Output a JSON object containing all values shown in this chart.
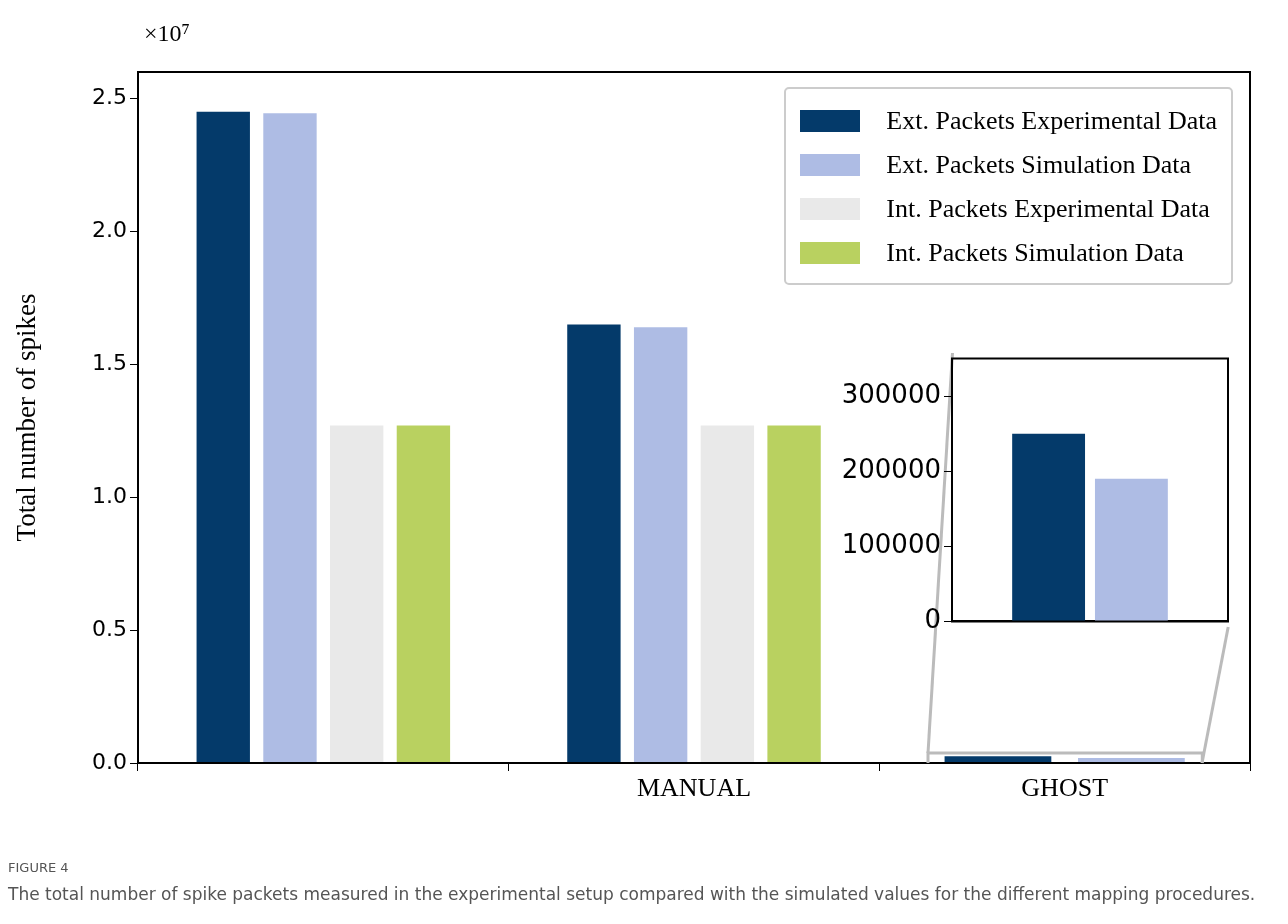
{
  "chart_data": [
    {
      "type": "bar",
      "ylabel": "Total number of spikes",
      "categories": [
        null,
        "MANUAL",
        "GHOST"
      ],
      "series": [
        {
          "name": "Ext. Packets Experimental Data",
          "color": "#043a6a",
          "values": [
            2.45,
            1.65,
            0.025
          ]
        },
        {
          "name": "Ext. Packets Simulation Data",
          "color": "#aebce4",
          "values": [
            2.445,
            1.64,
            0.019
          ]
        },
        {
          "name": "Int. Packets Experimental Data",
          "color": "#e9e9e9",
          "values": [
            1.27,
            1.27,
            null
          ]
        },
        {
          "name": "Int. Packets Simulation Data",
          "color": "#b9d160",
          "values": [
            1.27,
            1.27,
            null
          ]
        }
      ],
      "ylim": [
        0,
        2.6
      ],
      "yticks": [
        {
          "value": 0,
          "label": "0.0"
        },
        0.5,
        {
          "value": 1,
          "label": "1.0"
        },
        1.5,
        {
          "value": 2,
          "label": "2.0"
        },
        2.5
      ],
      "legend": "top right",
      "grid": false,
      "annotations": [
        "×10⁷",
        "FIGURE 4",
        "The total number of spike packets measured in the experimental setup compared with the simulated values for the different mapping procedures."
      ]
    },
    {
      "type": "bar",
      "categories": [
        null
      ],
      "series": [
        {
          "color": "#043a6a",
          "values": [
            250000
          ]
        },
        {
          "color": "#aebce4",
          "values": [
            190000
          ]
        }
      ],
      "ylim": [
        0,
        350000
      ],
      "yticks": [
        0,
        100000,
        200000,
        300000
      ],
      "tick_labels": "y",
      "grid": false
    }
  ]
}
